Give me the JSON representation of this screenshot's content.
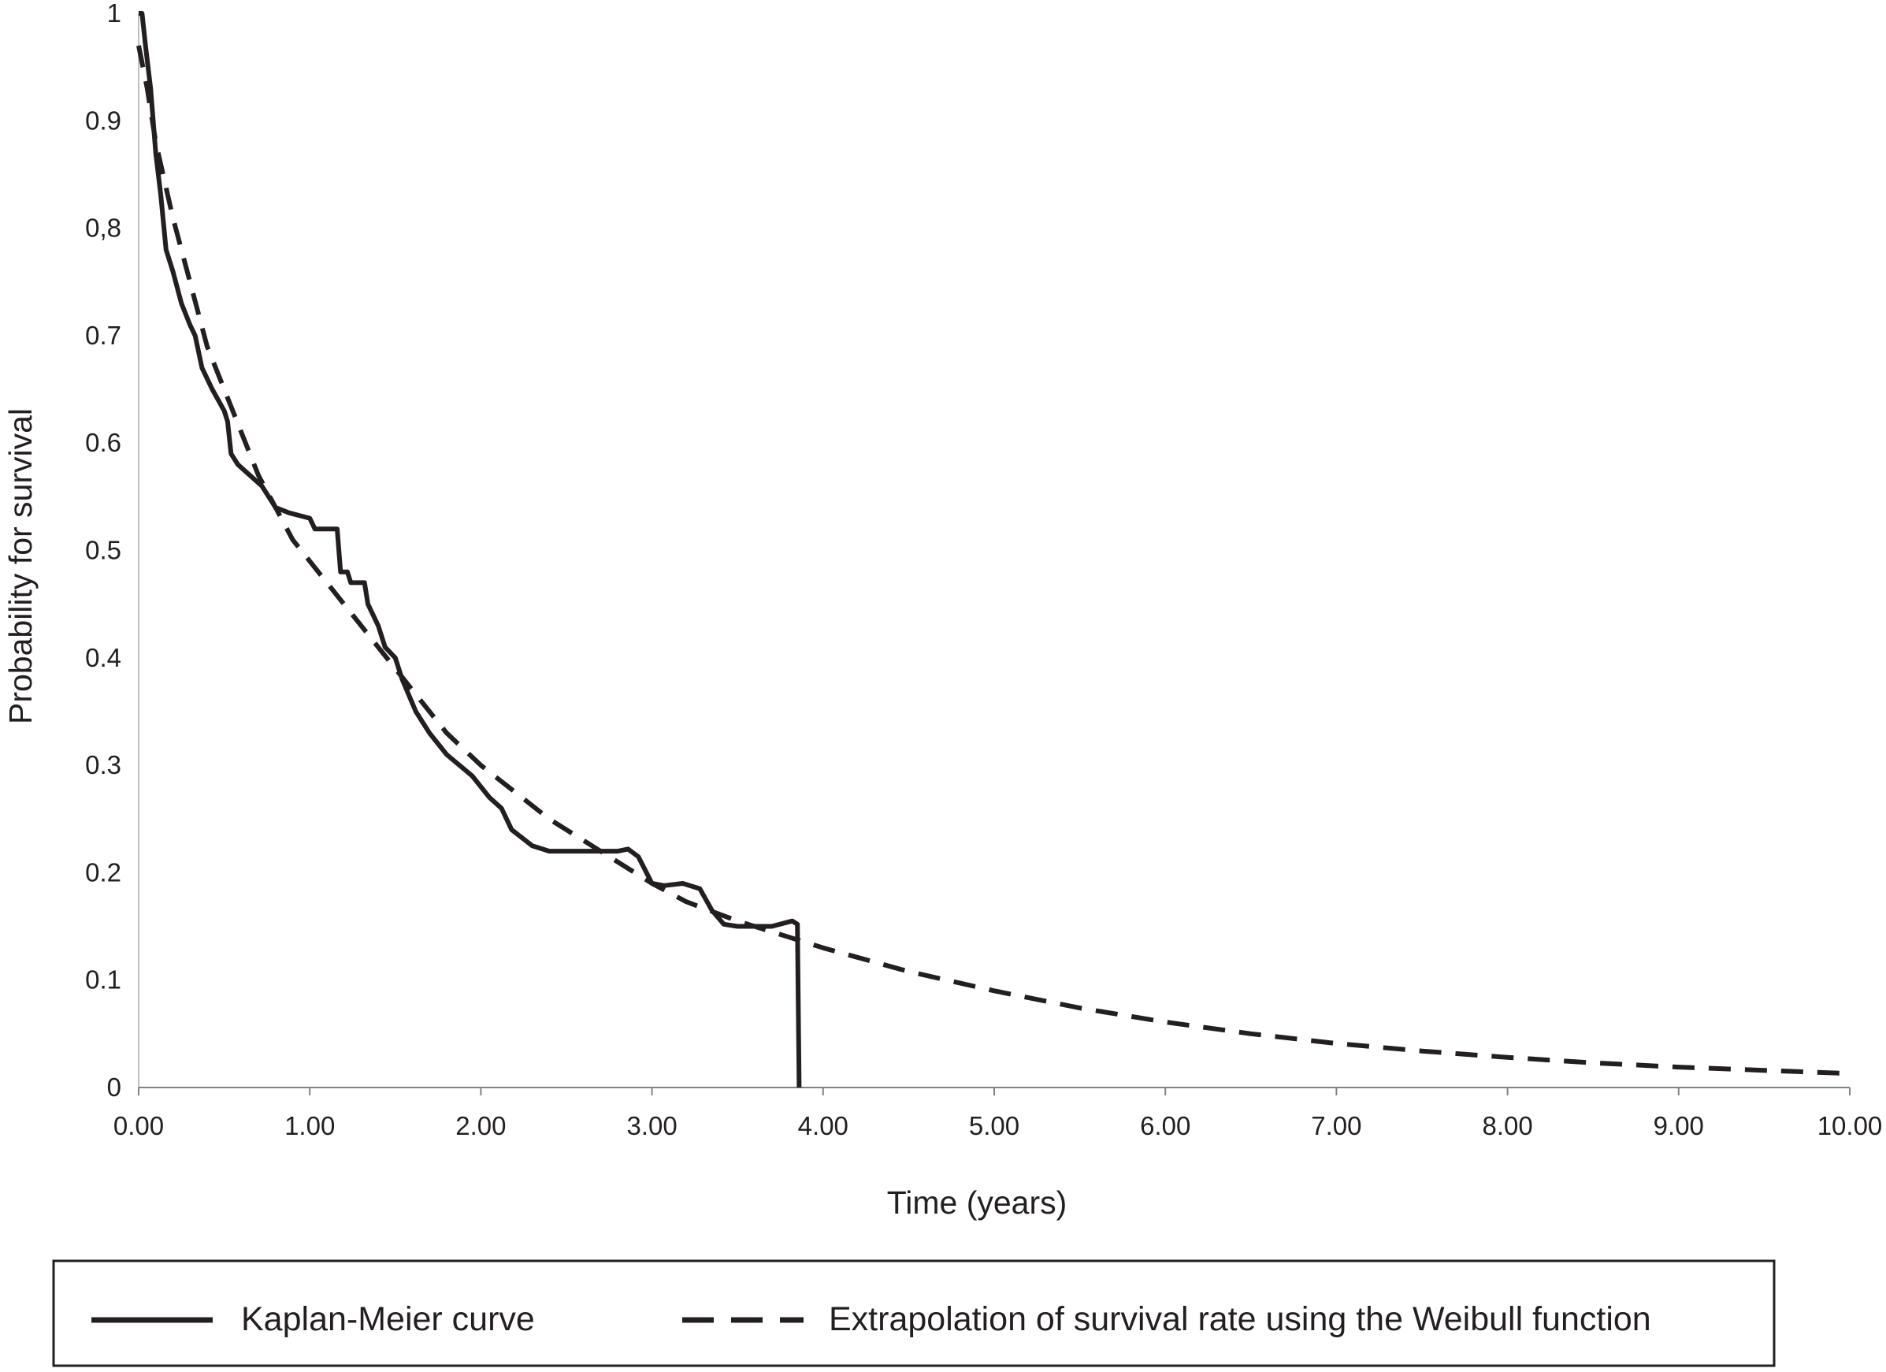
{
  "chart_data": {
    "type": "line",
    "title": "",
    "xlabel": "Time (years)",
    "ylabel": "Probability for survival",
    "xlim": [
      0,
      10
    ],
    "ylim": [
      0,
      1
    ],
    "x_ticks": [
      {
        "value": 0,
        "label": "0.00"
      },
      {
        "value": 1,
        "label": "1.00"
      },
      {
        "value": 2,
        "label": "2.00"
      },
      {
        "value": 3,
        "label": "3.00"
      },
      {
        "value": 4,
        "label": "4.00"
      },
      {
        "value": 5,
        "label": "5.00"
      },
      {
        "value": 6,
        "label": "6.00"
      },
      {
        "value": 7,
        "label": "7.00"
      },
      {
        "value": 8,
        "label": "8.00"
      },
      {
        "value": 9,
        "label": "9.00"
      },
      {
        "value": 10,
        "label": "10.00"
      }
    ],
    "y_ticks": [
      {
        "value": 0,
        "label": "0"
      },
      {
        "value": 0.1,
        "label": "0.1"
      },
      {
        "value": 0.2,
        "label": "0.2"
      },
      {
        "value": 0.3,
        "label": "0.3"
      },
      {
        "value": 0.4,
        "label": "0.4"
      },
      {
        "value": 0.5,
        "label": "0.5"
      },
      {
        "value": 0.6,
        "label": "0.6"
      },
      {
        "value": 0.7,
        "label": "0.7"
      },
      {
        "value": 0.8,
        "label": "0,8"
      },
      {
        "value": 0.9,
        "label": "0.9"
      },
      {
        "value": 1,
        "label": "1"
      }
    ],
    "grid": false,
    "legend_placement": "bottom",
    "series": [
      {
        "name": "Kaplan-Meier curve",
        "style": "solid",
        "color": "#231f20",
        "points": [
          [
            0,
            1.0
          ],
          [
            0.02,
            1.0
          ],
          [
            0.04,
            0.97
          ],
          [
            0.07,
            0.93
          ],
          [
            0.1,
            0.87
          ],
          [
            0.13,
            0.83
          ],
          [
            0.16,
            0.78
          ],
          [
            0.2,
            0.76
          ],
          [
            0.25,
            0.73
          ],
          [
            0.3,
            0.71
          ],
          [
            0.33,
            0.7
          ],
          [
            0.37,
            0.67
          ],
          [
            0.43,
            0.65
          ],
          [
            0.5,
            0.63
          ],
          [
            0.52,
            0.62
          ],
          [
            0.54,
            0.59
          ],
          [
            0.58,
            0.58
          ],
          [
            0.65,
            0.57
          ],
          [
            0.72,
            0.56
          ],
          [
            0.8,
            0.54
          ],
          [
            0.88,
            0.535
          ],
          [
            1.0,
            0.53
          ],
          [
            1.03,
            0.52
          ],
          [
            1.1,
            0.52
          ],
          [
            1.16,
            0.52
          ],
          [
            1.18,
            0.48
          ],
          [
            1.22,
            0.48
          ],
          [
            1.24,
            0.47
          ],
          [
            1.32,
            0.47
          ],
          [
            1.34,
            0.45
          ],
          [
            1.4,
            0.43
          ],
          [
            1.44,
            0.41
          ],
          [
            1.5,
            0.4
          ],
          [
            1.54,
            0.38
          ],
          [
            1.62,
            0.35
          ],
          [
            1.7,
            0.33
          ],
          [
            1.8,
            0.31
          ],
          [
            1.95,
            0.29
          ],
          [
            2.05,
            0.27
          ],
          [
            2.12,
            0.26
          ],
          [
            2.18,
            0.24
          ],
          [
            2.3,
            0.225
          ],
          [
            2.4,
            0.22
          ],
          [
            2.6,
            0.22
          ],
          [
            2.8,
            0.22
          ],
          [
            2.86,
            0.222
          ],
          [
            2.92,
            0.215
          ],
          [
            3.0,
            0.19
          ],
          [
            3.07,
            0.188
          ],
          [
            3.18,
            0.19
          ],
          [
            3.28,
            0.185
          ],
          [
            3.35,
            0.165
          ],
          [
            3.42,
            0.152
          ],
          [
            3.5,
            0.15
          ],
          [
            3.7,
            0.15
          ],
          [
            3.82,
            0.155
          ],
          [
            3.85,
            0.152
          ],
          [
            3.86,
            0.0
          ]
        ]
      },
      {
        "name": "Extrapolation of survival rate using the Weibull function",
        "style": "dashed",
        "color": "#231f20",
        "points": [
          [
            0,
            0.97
          ],
          [
            0.05,
            0.93
          ],
          [
            0.1,
            0.88
          ],
          [
            0.2,
            0.81
          ],
          [
            0.3,
            0.75
          ],
          [
            0.4,
            0.69
          ],
          [
            0.5,
            0.65
          ],
          [
            0.6,
            0.61
          ],
          [
            0.7,
            0.57
          ],
          [
            0.8,
            0.54
          ],
          [
            0.9,
            0.51
          ],
          [
            1.0,
            0.49
          ],
          [
            1.2,
            0.45
          ],
          [
            1.4,
            0.41
          ],
          [
            1.6,
            0.37
          ],
          [
            1.8,
            0.33
          ],
          [
            2.0,
            0.3
          ],
          [
            2.2,
            0.275
          ],
          [
            2.4,
            0.25
          ],
          [
            2.6,
            0.23
          ],
          [
            2.8,
            0.21
          ],
          [
            3.0,
            0.19
          ],
          [
            3.2,
            0.173
          ],
          [
            3.5,
            0.155
          ],
          [
            3.8,
            0.14
          ],
          [
            4.0,
            0.13
          ],
          [
            4.5,
            0.108
          ],
          [
            5.0,
            0.09
          ],
          [
            5.5,
            0.074
          ],
          [
            6.0,
            0.061
          ],
          [
            6.5,
            0.05
          ],
          [
            7.0,
            0.041
          ],
          [
            7.5,
            0.034
          ],
          [
            8.0,
            0.028
          ],
          [
            8.5,
            0.023
          ],
          [
            9.0,
            0.019
          ],
          [
            9.5,
            0.016
          ],
          [
            10.0,
            0.013
          ]
        ]
      }
    ]
  }
}
